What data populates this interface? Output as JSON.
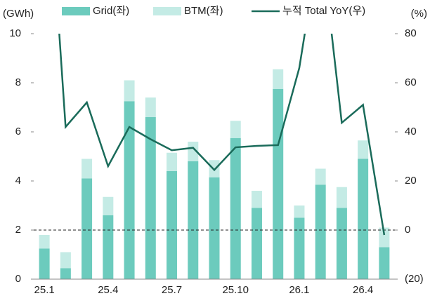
{
  "chart_data": {
    "type": "bar",
    "categories": [
      "25.1",
      null,
      null,
      "25.4",
      null,
      null,
      "25.7",
      null,
      null,
      "25.10",
      null,
      null,
      "26.1",
      null,
      null,
      "26.4",
      null
    ],
    "series": [
      {
        "name": "Grid(좌)",
        "color": "#6ccbbd",
        "values": [
          1.25,
          0.45,
          4.1,
          2.6,
          7.25,
          6.6,
          4.4,
          4.8,
          4.15,
          5.75,
          2.9,
          7.75,
          2.5,
          3.85,
          2.9,
          4.9,
          1.3
        ]
      },
      {
        "name": "BTM(좌)",
        "color": "#c4ebe5",
        "values": [
          0.55,
          0.65,
          0.8,
          0.75,
          0.85,
          0.8,
          0.75,
          0.8,
          0.7,
          0.7,
          0.7,
          0.8,
          0.5,
          0.65,
          0.85,
          0.75,
          0.8
        ]
      },
      {
        "name": "누적 Total YoY(우)",
        "color": "#1a6b5a",
        "type": "line",
        "axis": "y2",
        "values": [
          170,
          42,
          52,
          26,
          42,
          37,
          32.5,
          33.5,
          24.5,
          33.7,
          34.3,
          34.6,
          66,
          120,
          43.7,
          51,
          -2
        ]
      }
    ],
    "y_unit": "(GWh)",
    "y2_unit": "(%)",
    "ylim": [
      0,
      10
    ],
    "yticks": [
      0,
      2,
      4,
      6,
      8,
      10
    ],
    "y2lim": [
      -20,
      80
    ],
    "y2ticks": [
      {
        "value": -20,
        "label": "(20)"
      },
      0,
      20,
      40,
      60,
      80
    ],
    "y2_reference": 0
  }
}
